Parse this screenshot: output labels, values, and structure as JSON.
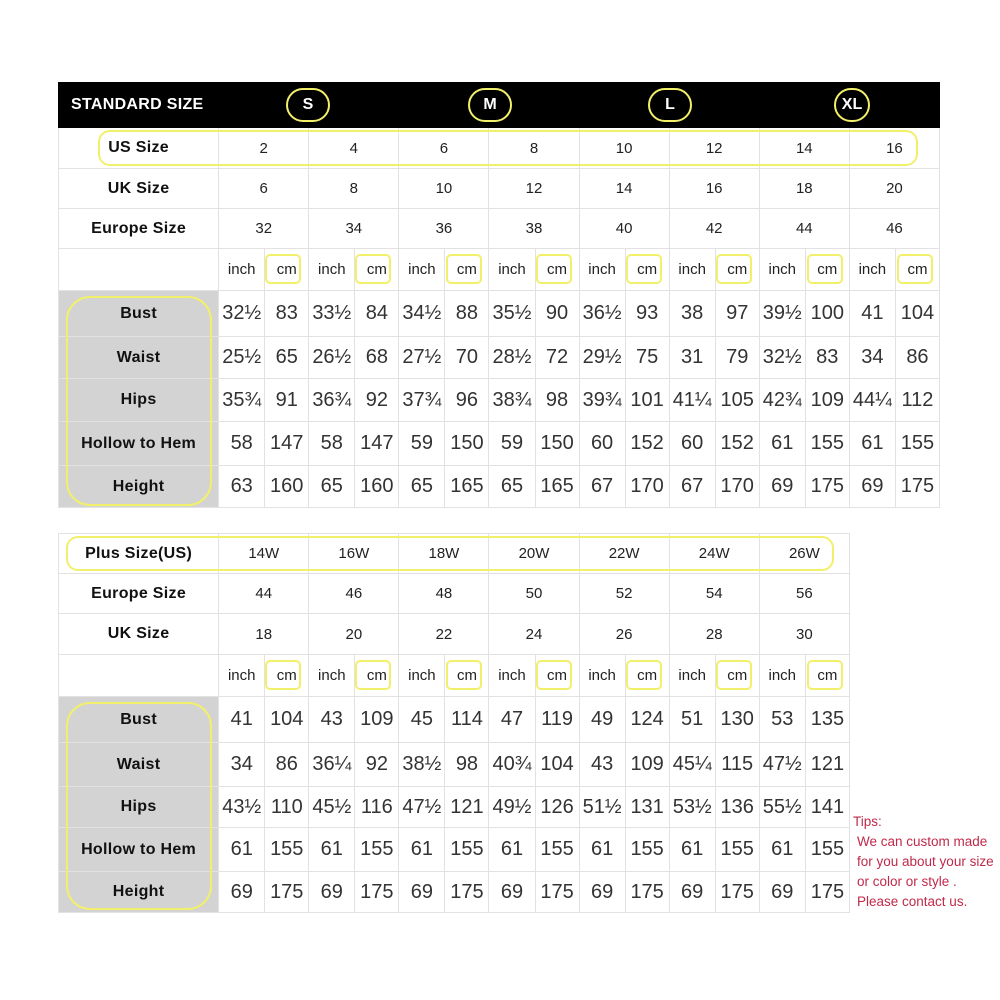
{
  "standard": {
    "title": "STANDARD SIZE",
    "letters": [
      "S",
      "M",
      "L",
      "XL"
    ],
    "rows": [
      {
        "label": "US Size",
        "values": [
          "2",
          "4",
          "6",
          "8",
          "10",
          "12",
          "14",
          "16"
        ]
      },
      {
        "label": "UK Size",
        "values": [
          "6",
          "8",
          "10",
          "12",
          "14",
          "16",
          "18",
          "20"
        ]
      },
      {
        "label": "Europe Size",
        "values": [
          "32",
          "34",
          "36",
          "38",
          "40",
          "42",
          "44",
          "46"
        ]
      }
    ],
    "units": [
      "inch",
      "cm"
    ],
    "measurements": [
      {
        "label": "Bust",
        "values": [
          "32½",
          "83",
          "33½",
          "84",
          "34½",
          "88",
          "35½",
          "90",
          "36½",
          "93",
          "38",
          "97",
          "39½",
          "100",
          "41",
          "104"
        ]
      },
      {
        "label": "Waist",
        "values": [
          "25½",
          "65",
          "26½",
          "68",
          "27½",
          "70",
          "28½",
          "72",
          "29½",
          "75",
          "31",
          "79",
          "32½",
          "83",
          "34",
          "86"
        ]
      },
      {
        "label": "Hips",
        "values": [
          "35¾",
          "91",
          "36¾",
          "92",
          "37¾",
          "96",
          "38¾",
          "98",
          "39¾",
          "101",
          "41¼",
          "105",
          "42¾",
          "109",
          "44¼",
          "112"
        ]
      },
      {
        "label": "Hollow to Hem",
        "values": [
          "58",
          "147",
          "58",
          "147",
          "59",
          "150",
          "59",
          "150",
          "60",
          "152",
          "60",
          "152",
          "61",
          "155",
          "61",
          "155"
        ]
      },
      {
        "label": "Height",
        "values": [
          "63",
          "160",
          "65",
          "160",
          "65",
          "165",
          "65",
          "165",
          "67",
          "170",
          "67",
          "170",
          "69",
          "175",
          "69",
          "175"
        ]
      }
    ]
  },
  "plus": {
    "rows": [
      {
        "label": "Plus Size(US)",
        "values": [
          "14W",
          "16W",
          "18W",
          "20W",
          "22W",
          "24W",
          "26W"
        ]
      },
      {
        "label": "Europe Size",
        "values": [
          "44",
          "46",
          "48",
          "50",
          "52",
          "54",
          "56"
        ]
      },
      {
        "label": "UK Size",
        "values": [
          "18",
          "20",
          "22",
          "24",
          "26",
          "28",
          "30"
        ]
      }
    ],
    "units": [
      "inch",
      "cm"
    ],
    "measurements": [
      {
        "label": "Bust",
        "values": [
          "41",
          "104",
          "43",
          "109",
          "45",
          "114",
          "47",
          "119",
          "49",
          "124",
          "51",
          "130",
          "53",
          "135"
        ]
      },
      {
        "label": "Waist",
        "values": [
          "34",
          "86",
          "36¼",
          "92",
          "38½",
          "98",
          "40¾",
          "104",
          "43",
          "109",
          "45¼",
          "115",
          "47½",
          "121"
        ]
      },
      {
        "label": "Hips",
        "values": [
          "43½",
          "110",
          "45½",
          "116",
          "47½",
          "121",
          "49½",
          "126",
          "51½",
          "131",
          "53½",
          "136",
          "55½",
          "141"
        ]
      },
      {
        "label": "Hollow to Hem",
        "values": [
          "61",
          "155",
          "61",
          "155",
          "61",
          "155",
          "61",
          "155",
          "61",
          "155",
          "61",
          "155",
          "61",
          "155"
        ]
      },
      {
        "label": "Height",
        "values": [
          "69",
          "175",
          "69",
          "175",
          "69",
          "175",
          "69",
          "175",
          "69",
          "175",
          "69",
          "175",
          "69",
          "175"
        ]
      }
    ]
  },
  "tips": [
    "Tips:",
    "We can custom made",
    "for you about your size",
    "or color or style .",
    "Please contact us."
  ],
  "colors": {
    "highlight": "#f2f06a",
    "tips": "#c0294a",
    "header_bg": "#000000",
    "label_bg": "#d3d3d3"
  }
}
